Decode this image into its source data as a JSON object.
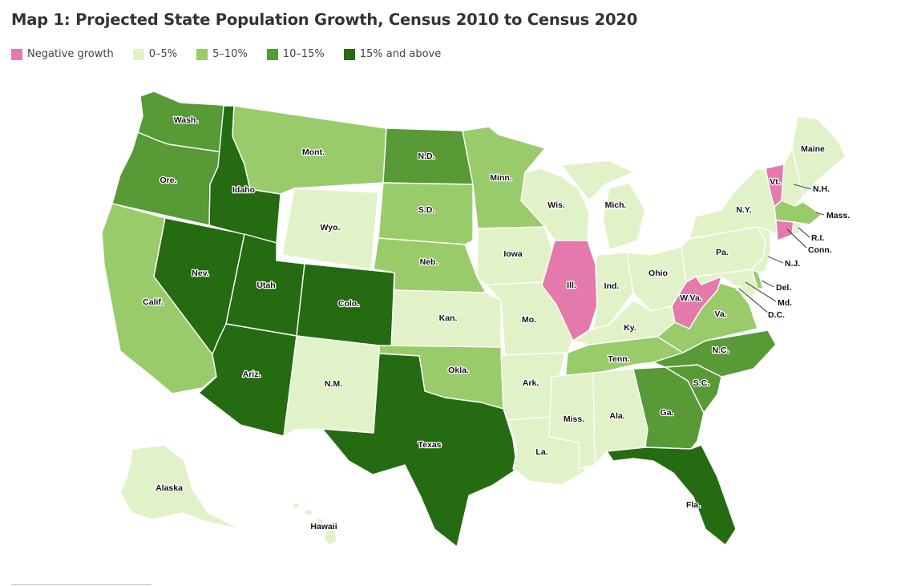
{
  "title": "Map 1: Projected State Population Growth, Census 2010 to Census 2020",
  "legend": [
    {
      "key": "neg",
      "label": "Negative growth",
      "color": "#e47aab"
    },
    {
      "key": "g0",
      "label": "0–5%",
      "color": "#e1f2c8"
    },
    {
      "key": "g5",
      "label": "5–10%",
      "color": "#9acb6b"
    },
    {
      "key": "g10",
      "label": "10–15%",
      "color": "#579a36"
    },
    {
      "key": "g15",
      "label": "15% and above",
      "color": "#246b12"
    }
  ],
  "states": {
    "WA": {
      "label": "Wash.",
      "cat": "g10"
    },
    "OR": {
      "label": "Ore.",
      "cat": "g10"
    },
    "CA": {
      "label": "Calif.",
      "cat": "g5"
    },
    "NV": {
      "label": "Nev.",
      "cat": "g15"
    },
    "ID": {
      "label": "Idaho",
      "cat": "g15"
    },
    "MT": {
      "label": "Mont.",
      "cat": "g5"
    },
    "WY": {
      "label": "Wyo.",
      "cat": "g0"
    },
    "UT": {
      "label": "Utah",
      "cat": "g15"
    },
    "AZ": {
      "label": "Ariz.",
      "cat": "g15"
    },
    "CO": {
      "label": "Colo.",
      "cat": "g15"
    },
    "NM": {
      "label": "N.M.",
      "cat": "g0"
    },
    "ND": {
      "label": "N.D.",
      "cat": "g10"
    },
    "SD": {
      "label": "S.D.",
      "cat": "g5"
    },
    "NE": {
      "label": "Neb.",
      "cat": "g5"
    },
    "KS": {
      "label": "Kan.",
      "cat": "g0"
    },
    "OK": {
      "label": "Okla.",
      "cat": "g5"
    },
    "TX": {
      "label": "Texas",
      "cat": "g15"
    },
    "MN": {
      "label": "Minn.",
      "cat": "g5"
    },
    "IA": {
      "label": "Iowa",
      "cat": "g0"
    },
    "MO": {
      "label": "Mo.",
      "cat": "g0"
    },
    "AR": {
      "label": "Ark.",
      "cat": "g0"
    },
    "LA": {
      "label": "La.",
      "cat": "g0"
    },
    "WI": {
      "label": "Wis.",
      "cat": "g0"
    },
    "IL": {
      "label": "Ill.",
      "cat": "neg"
    },
    "MI": {
      "label": "Mich.",
      "cat": "g0"
    },
    "IN": {
      "label": "Ind.",
      "cat": "g0"
    },
    "OH": {
      "label": "Ohio",
      "cat": "g0"
    },
    "KY": {
      "label": "Ky.",
      "cat": "g0"
    },
    "TN": {
      "label": "Tenn.",
      "cat": "g5"
    },
    "MS": {
      "label": "Miss.",
      "cat": "g0"
    },
    "AL": {
      "label": "Ala.",
      "cat": "g0"
    },
    "GA": {
      "label": "Ga.",
      "cat": "g10"
    },
    "FL": {
      "label": "Fla.",
      "cat": "g15"
    },
    "SC": {
      "label": "S.C.",
      "cat": "g10"
    },
    "NC": {
      "label": "N.C.",
      "cat": "g10"
    },
    "VA": {
      "label": "Va.",
      "cat": "g5"
    },
    "WV": {
      "label": "W.Va.",
      "cat": "neg"
    },
    "MD": {
      "label": "Md.",
      "cat": "g0"
    },
    "DE": {
      "label": "Del.",
      "cat": "g5"
    },
    "DC": {
      "label": "D.C.",
      "cat": "g0"
    },
    "PA": {
      "label": "Pa.",
      "cat": "g0"
    },
    "NJ": {
      "label": "N.J.",
      "cat": "g0"
    },
    "NY": {
      "label": "N.Y.",
      "cat": "g0"
    },
    "CT": {
      "label": "Conn.",
      "cat": "neg"
    },
    "RI": {
      "label": "R.I.",
      "cat": "g0"
    },
    "MA": {
      "label": "Mass.",
      "cat": "g5"
    },
    "VT": {
      "label": "Vt.",
      "cat": "neg"
    },
    "NH": {
      "label": "N.H.",
      "cat": "g0"
    },
    "ME": {
      "label": "Maine",
      "cat": "g0"
    },
    "AK": {
      "label": "Alaska",
      "cat": "g0"
    },
    "HI": {
      "label": "Hawaii",
      "cat": "g0"
    }
  }
}
